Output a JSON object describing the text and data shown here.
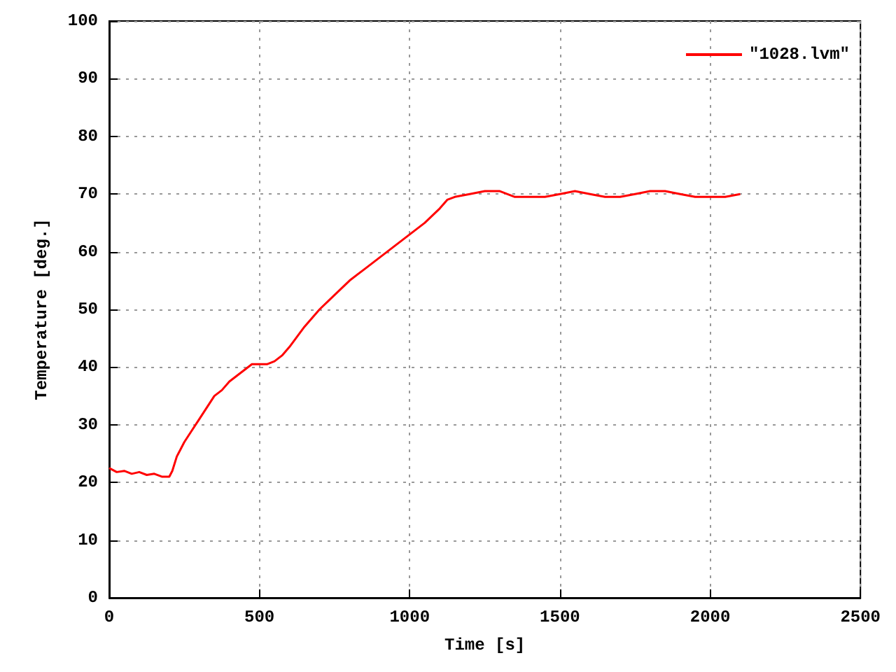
{
  "chart_data": {
    "type": "line",
    "xlabel": "Time [s]",
    "ylabel": "Temperature [deg.]",
    "xlim": [
      0,
      2500
    ],
    "xticks": [
      0,
      500,
      1000,
      1500,
      2000,
      2500
    ],
    "ylim": [
      0,
      100
    ],
    "yticks": [
      0,
      10,
      20,
      30,
      40,
      50,
      60,
      70,
      80,
      90,
      100
    ],
    "grid": true,
    "legend": "top right",
    "marker": "none",
    "line_style": "solid",
    "x": [
      0,
      25,
      50,
      75,
      100,
      125,
      150,
      175,
      200,
      210,
      225,
      250,
      275,
      300,
      325,
      350,
      375,
      400,
      425,
      450,
      475,
      500,
      525,
      550,
      575,
      600,
      650,
      700,
      750,
      800,
      850,
      900,
      950,
      1000,
      1050,
      1100,
      1125,
      1150,
      1200,
      1250,
      1300,
      1350,
      1400,
      1450,
      1500,
      1550,
      1600,
      1650,
      1700,
      1750,
      1800,
      1850,
      1900,
      1950,
      2000,
      2050,
      2100
    ],
    "series": [
      {
        "name": "\"1028.lvm\"",
        "color": "#ff0000",
        "values": [
          22.5,
          21.8,
          22,
          21.5,
          21.8,
          21.3,
          21.5,
          21,
          21,
          22,
          24.5,
          27,
          29,
          31,
          33,
          35,
          36,
          37.5,
          38.5,
          39.5,
          40.5,
          40.5,
          40.5,
          41,
          42,
          43.5,
          47,
          50,
          52.5,
          55,
          57,
          59,
          61,
          63,
          65,
          67.5,
          69,
          69.5,
          70,
          70.5,
          70.5,
          69.5,
          69.5,
          69.5,
          70,
          70.5,
          70,
          69.5,
          69.5,
          70,
          70.5,
          70.5,
          70,
          69.5,
          69.5,
          69.5,
          70
        ]
      }
    ]
  }
}
